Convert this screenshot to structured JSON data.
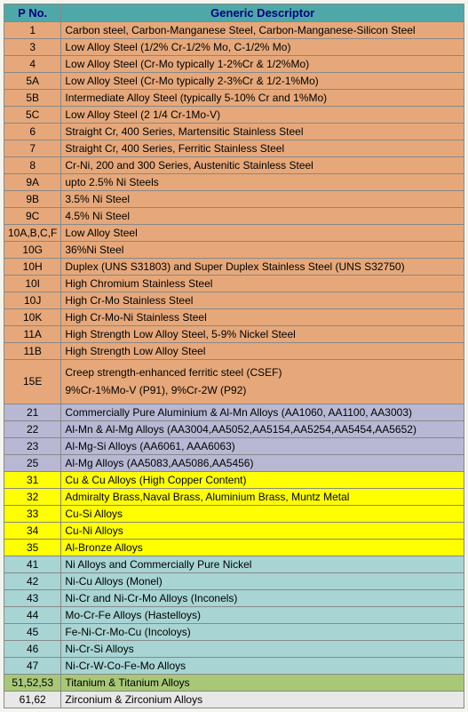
{
  "header": {
    "title_pno": "P No.",
    "title_desc": "Generic Descriptor",
    "bg_color": "#4fa8a8",
    "text_color": "#000080",
    "font_size": 13
  },
  "groups": [
    {
      "bg_color": "#e6a87a",
      "rows": [
        {
          "pno": "1",
          "desc": "Carbon steel, Carbon-Manganese Steel, Carbon-Manganese-Silicon Steel"
        },
        {
          "pno": "3",
          "desc": "Low Alloy Steel (1/2% Cr-1/2% Mo, C-1/2% Mo)"
        },
        {
          "pno": "4",
          "desc": "Low Alloy Steel (Cr-Mo typically 1-2%Cr & 1/2%Mo)"
        },
        {
          "pno": "5A",
          "desc": "Low Alloy Steel (Cr-Mo typically 2-3%Cr & 1/2-1%Mo)"
        },
        {
          "pno": "5B",
          "desc": "Intermediate Alloy Steel (typically 5-10% Cr and 1%Mo)"
        },
        {
          "pno": "5C",
          "desc": "Low Alloy Steel (2 1/4 Cr-1Mo-V)"
        },
        {
          "pno": "6",
          "desc": "Straight Cr, 400 Series, Martensitic Stainless Steel"
        },
        {
          "pno": "7",
          "desc": "Straight Cr, 400 Series, Ferritic Stainless Steel"
        },
        {
          "pno": "8",
          "desc": "Cr-Ni, 200 and 300 Series, Austenitic Stainless Steel"
        },
        {
          "pno": "9A",
          "desc": "upto 2.5% Ni Steels"
        },
        {
          "pno": "9B",
          "desc": "3.5% Ni Steel"
        },
        {
          "pno": "9C",
          "desc": "4.5% Ni Steel"
        },
        {
          "pno": "10A,B,C,F",
          "desc": "Low Alloy Steel"
        },
        {
          "pno": "10G",
          "desc": "36%Ni Steel"
        },
        {
          "pno": "10H",
          "desc": "Duplex  (UNS S31803) and Super Duplex Stainless Steel (UNS S32750)"
        },
        {
          "pno": "10I",
          "desc": "High Chromium Stainless Steel"
        },
        {
          "pno": "10J",
          "desc": "High Cr-Mo Stainless Steel"
        },
        {
          "pno": "10K",
          "desc": "High Cr-Mo-Ni Stainless Steel"
        },
        {
          "pno": "11A",
          "desc": "High Strength Low Alloy Steel, 5-9% Nickel Steel"
        },
        {
          "pno": "11B",
          "desc": "High Strength Low Alloy Steel"
        },
        {
          "pno": "15E",
          "desc": "Creep strength-enhanced ferritic steel (CSEF)\n9%Cr-1%Mo-V (P91), 9%Cr-2W (P92)",
          "multiline": true
        }
      ]
    },
    {
      "bg_color": "#b8b8d4",
      "rows": [
        {
          "pno": "21",
          "desc": "Commercially Pure Aluminium & Al-Mn Alloys (AA1060, AA1100, AA3003)"
        },
        {
          "pno": "22",
          "desc": "Al-Mn & Al-Mg Alloys (AA3004,AA5052,AA5154,AA5254,AA5454,AA5652)"
        },
        {
          "pno": "23",
          "desc": "Al-Mg-Si Alloys (AA6061, AAA6063)"
        },
        {
          "pno": "25",
          "desc": "Al-Mg Alloys (AA5083,AA5086,AA5456)"
        }
      ]
    },
    {
      "bg_color": "#ffff00",
      "rows": [
        {
          "pno": "31",
          "desc": "Cu & Cu Alloys (High Copper Content)"
        },
        {
          "pno": "32",
          "desc": "Admiralty Brass,Naval Brass, Aluminium Brass, Muntz Metal"
        },
        {
          "pno": "33",
          "desc": "Cu-Si Alloys"
        },
        {
          "pno": "34",
          "desc": "Cu-Ni Alloys"
        },
        {
          "pno": "35",
          "desc": "Al-Bronze Alloys"
        }
      ]
    },
    {
      "bg_color": "#a8d4d4",
      "rows": [
        {
          "pno": "41",
          "desc": "Ni Alloys and Commercially Pure Nickel"
        },
        {
          "pno": "42",
          "desc": "Ni-Cu Alloys (Monel)"
        },
        {
          "pno": "43",
          "desc": "Ni-Cr and Ni-Cr-Mo Alloys (Inconels)"
        },
        {
          "pno": "44",
          "desc": "Mo-Cr-Fe Alloys (Hastelloys)"
        },
        {
          "pno": "45",
          "desc": "Fe-Ni-Cr-Mo-Cu (Incoloys)"
        },
        {
          "pno": "46",
          "desc": "Ni-Cr-Si Alloys"
        },
        {
          "pno": "47",
          "desc": "Ni-Cr-W-Co-Fe-Mo Alloys"
        }
      ]
    },
    {
      "bg_color": "#a8c878",
      "rows": [
        {
          "pno": "51,52,53",
          "desc": "Titanium & Titanium Alloys"
        }
      ]
    },
    {
      "bg_color": "#e8e8e8",
      "rows": [
        {
          "pno": "61,62",
          "desc": "Zirconium & Zirconium Alloys"
        }
      ]
    }
  ]
}
